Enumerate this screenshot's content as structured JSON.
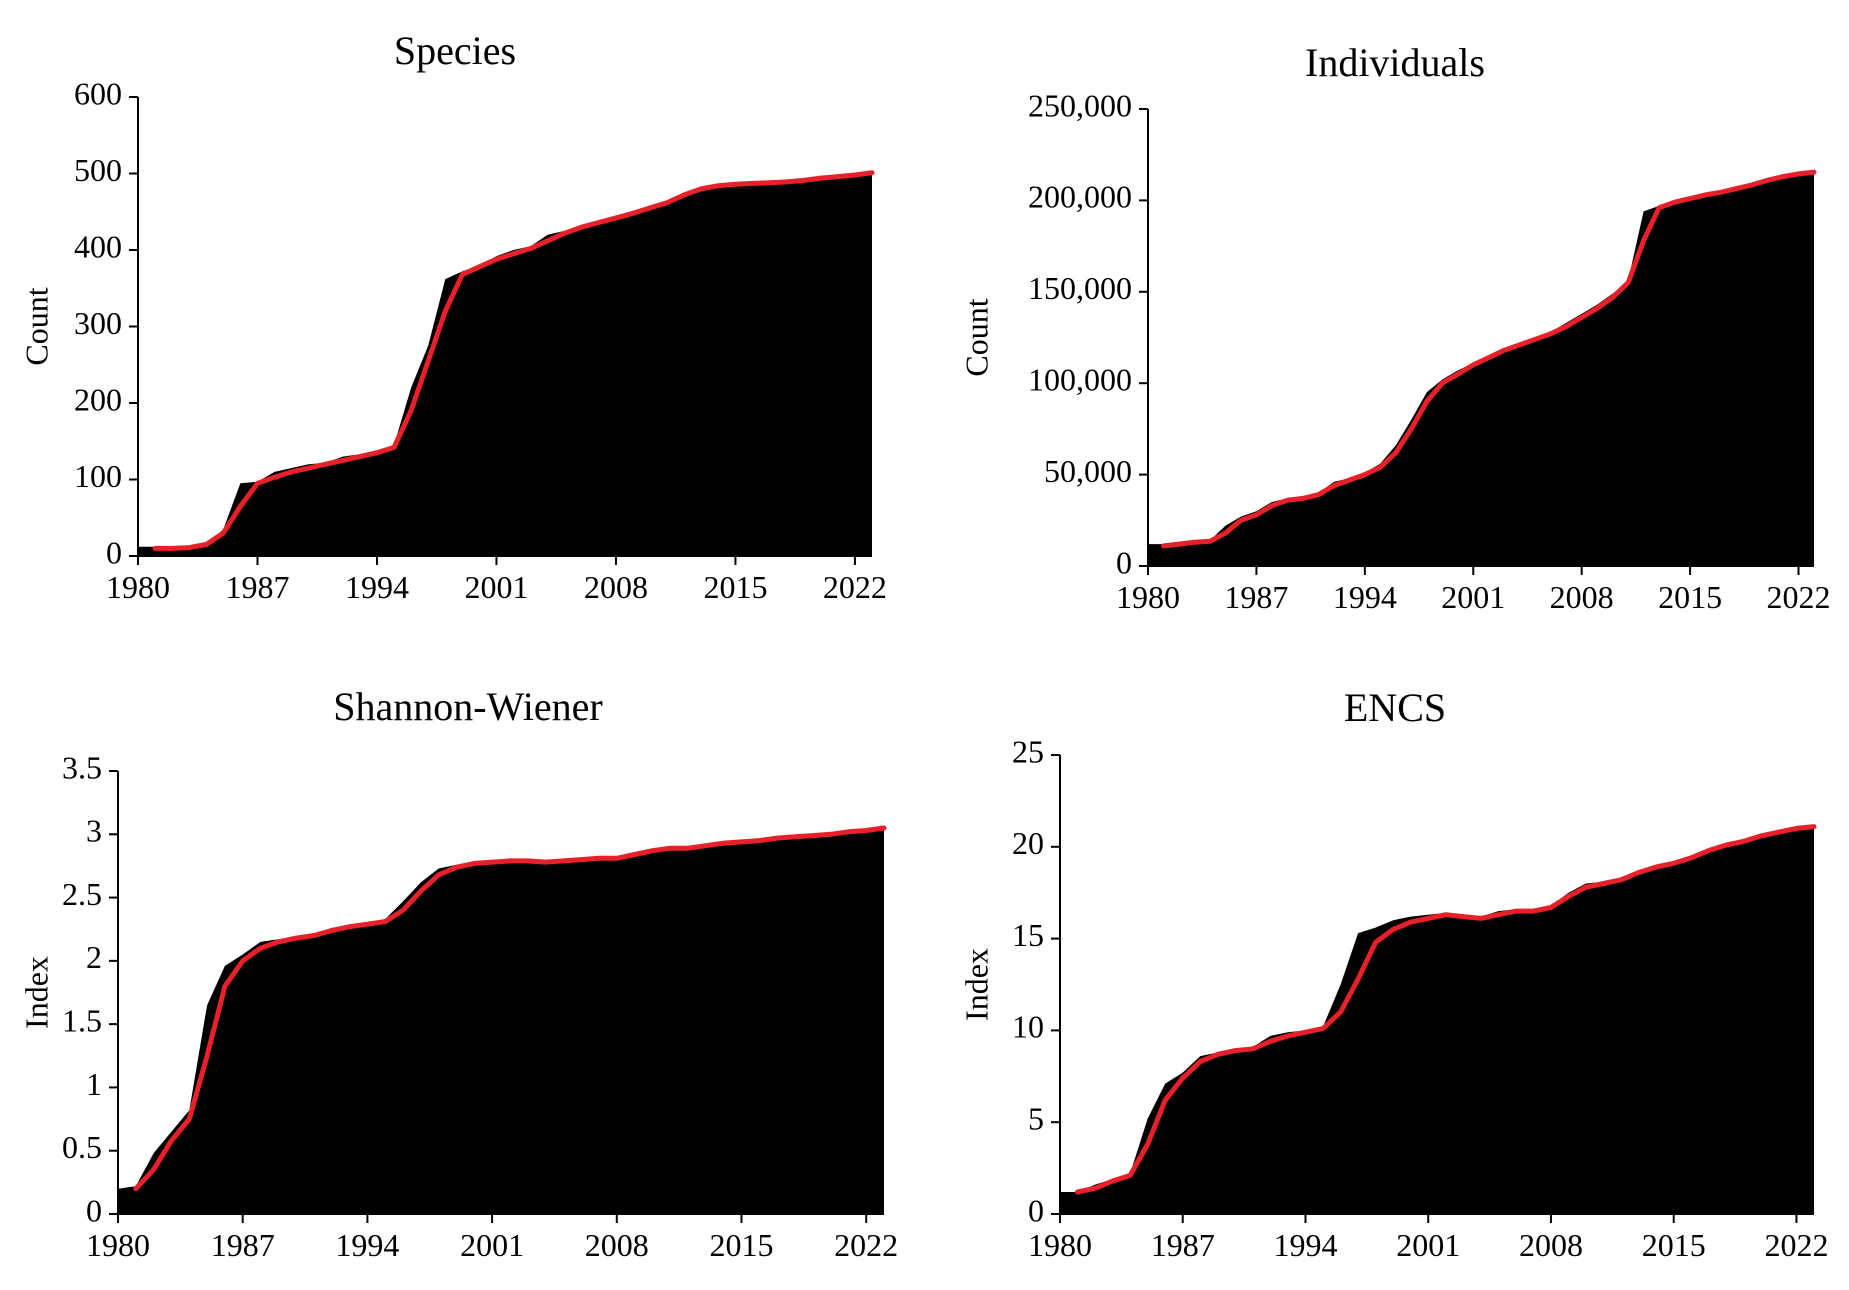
{
  "chart_data": [
    {
      "type": "area",
      "title": "Species",
      "xlabel": "",
      "ylabel": "Count",
      "xlim": [
        1980,
        2023
      ],
      "ylim": [
        0,
        600
      ],
      "x_ticks": [
        1980,
        1987,
        1994,
        2001,
        2008,
        2015,
        2022
      ],
      "x_tick_labels": [
        "1980",
        "1987",
        "1994",
        "2001",
        "2008",
        "2015",
        "2022"
      ],
      "y_ticks": [
        0,
        100,
        200,
        300,
        400,
        500,
        600
      ],
      "y_tick_labels": [
        "0",
        "100",
        "200",
        "300",
        "400",
        "500",
        "600"
      ],
      "grid": false,
      "legend": "none",
      "area_color": "#000000",
      "line_color": "#e8202a",
      "x": [
        1980,
        1981,
        1982,
        1983,
        1984,
        1985,
        1986,
        1987,
        1988,
        1989,
        1990,
        1991,
        1992,
        1993,
        1994,
        1995,
        1996,
        1997,
        1998,
        1999,
        2000,
        2001,
        2002,
        2003,
        2004,
        2005,
        2006,
        2007,
        2008,
        2009,
        2010,
        2011,
        2012,
        2013,
        2014,
        2015,
        2016,
        2017,
        2018,
        2019,
        2020,
        2021,
        2022,
        2023
      ],
      "series": [
        {
          "name": "",
          "values": [
            12,
            12,
            12,
            12,
            15,
            35,
            95,
            97,
            110,
            115,
            120,
            122,
            130,
            133,
            138,
            145,
            220,
            275,
            362,
            372,
            380,
            392,
            400,
            405,
            420,
            425,
            432,
            436,
            445,
            450,
            458,
            462,
            475,
            482,
            485,
            487,
            488,
            490,
            490,
            492,
            495,
            497,
            498,
            500
          ]
        },
        {
          "name": "",
          "values": [
            null,
            10,
            10,
            11,
            15,
            30,
            65,
            95,
            103,
            110,
            115,
            120,
            125,
            130,
            135,
            142,
            190,
            255,
            320,
            368,
            378,
            388,
            395,
            402,
            412,
            422,
            430,
            436,
            442,
            448,
            455,
            462,
            472,
            480,
            484,
            486,
            487,
            488,
            489,
            491,
            494,
            496,
            498,
            501
          ]
        }
      ]
    },
    {
      "type": "area",
      "title": "Individuals",
      "xlabel": "",
      "ylabel": "Count",
      "xlim": [
        1980,
        2023
      ],
      "ylim": [
        0,
        250000
      ],
      "x_ticks": [
        1980,
        1987,
        1994,
        2001,
        2008,
        2015,
        2022
      ],
      "x_tick_labels": [
        "1980",
        "1987",
        "1994",
        "2001",
        "2008",
        "2015",
        "2022"
      ],
      "y_ticks": [
        0,
        50000,
        100000,
        150000,
        200000,
        250000
      ],
      "y_tick_labels": [
        "0",
        "50,000",
        "100,000",
        "150,000",
        "200,000",
        "250,000"
      ],
      "grid": false,
      "legend": "none",
      "area_color": "#000000",
      "line_color": "#e8202a",
      "x": [
        1980,
        1981,
        1982,
        1983,
        1984,
        1985,
        1986,
        1987,
        1988,
        1989,
        1990,
        1991,
        1992,
        1993,
        1994,
        1995,
        1996,
        1997,
        1998,
        1999,
        2000,
        2001,
        2002,
        2003,
        2004,
        2005,
        2006,
        2007,
        2008,
        2009,
        2010,
        2011,
        2012,
        2013,
        2014,
        2015,
        2016,
        2017,
        2018,
        2019,
        2020,
        2021,
        2022,
        2023
      ],
      "series": [
        {
          "name": "",
          "values": [
            12000,
            12000,
            12000,
            13000,
            14000,
            22000,
            27000,
            30000,
            35000,
            37000,
            38000,
            40000,
            46000,
            48000,
            51000,
            56000,
            66000,
            80000,
            95000,
            102000,
            107000,
            111000,
            115000,
            119000,
            122000,
            125000,
            128000,
            133000,
            138000,
            143000,
            149000,
            156000,
            194000,
            197000,
            200000,
            202000,
            203000,
            205000,
            207000,
            209000,
            211000,
            213000,
            214000,
            215000
          ]
        },
        {
          "name": "",
          "values": [
            null,
            11000,
            12000,
            13000,
            13500,
            18000,
            25000,
            28000,
            33000,
            36000,
            37000,
            39000,
            44000,
            47000,
            50000,
            54000,
            62000,
            75000,
            90000,
            100000,
            105000,
            110000,
            114000,
            118000,
            121000,
            124000,
            127000,
            131000,
            136000,
            141000,
            147000,
            155000,
            178000,
            196000,
            199000,
            201000,
            203000,
            204500,
            206500,
            208500,
            211000,
            213000,
            214500,
            215500
          ]
        }
      ]
    },
    {
      "type": "area",
      "title": "Shannon-Wiener",
      "xlabel": "",
      "ylabel": "Index",
      "xlim": [
        1980,
        2023
      ],
      "ylim": [
        0,
        3.5
      ],
      "x_ticks": [
        1980,
        1987,
        1994,
        2001,
        2008,
        2015,
        2022
      ],
      "x_tick_labels": [
        "1980",
        "1987",
        "1994",
        "2001",
        "2008",
        "2015",
        "2022"
      ],
      "y_ticks": [
        0,
        0.5,
        1,
        1.5,
        2,
        2.5,
        3,
        3.5
      ],
      "y_tick_labels": [
        "0",
        "0.5",
        "1",
        "1.5",
        "2",
        "2.5",
        "3",
        "3.5"
      ],
      "grid": false,
      "legend": "none",
      "area_color": "#000000",
      "line_color": "#e8202a",
      "x": [
        1980,
        1981,
        1982,
        1983,
        1984,
        1985,
        1986,
        1987,
        1988,
        1989,
        1990,
        1991,
        1992,
        1993,
        1994,
        1995,
        1996,
        1997,
        1998,
        1999,
        2000,
        2001,
        2002,
        2003,
        2004,
        2005,
        2006,
        2007,
        2008,
        2009,
        2010,
        2011,
        2012,
        2013,
        2014,
        2015,
        2016,
        2017,
        2018,
        2019,
        2020,
        2021,
        2022,
        2023
      ],
      "series": [
        {
          "name": "",
          "values": [
            0.2,
            0.22,
            0.48,
            0.65,
            0.82,
            1.65,
            1.96,
            2.05,
            2.15,
            2.17,
            2.19,
            2.21,
            2.26,
            2.28,
            2.3,
            2.33,
            2.47,
            2.62,
            2.73,
            2.76,
            2.78,
            2.79,
            2.8,
            2.8,
            2.79,
            2.8,
            2.81,
            2.82,
            2.82,
            2.85,
            2.88,
            2.9,
            2.9,
            2.92,
            2.94,
            2.95,
            2.96,
            2.98,
            2.99,
            3.0,
            3.01,
            3.02,
            3.04,
            3.05
          ]
        },
        {
          "name": "",
          "values": [
            null,
            0.2,
            0.35,
            0.58,
            0.75,
            1.25,
            1.8,
            2.0,
            2.1,
            2.15,
            2.18,
            2.2,
            2.24,
            2.27,
            2.29,
            2.31,
            2.4,
            2.55,
            2.68,
            2.74,
            2.77,
            2.78,
            2.79,
            2.79,
            2.78,
            2.79,
            2.8,
            2.81,
            2.81,
            2.84,
            2.87,
            2.89,
            2.89,
            2.91,
            2.93,
            2.94,
            2.95,
            2.97,
            2.98,
            2.99,
            3.0,
            3.02,
            3.03,
            3.05
          ]
        }
      ]
    },
    {
      "type": "area",
      "title": "ENCS",
      "xlabel": "",
      "ylabel": "Index",
      "xlim": [
        1980,
        2023
      ],
      "ylim": [
        0,
        25
      ],
      "x_ticks": [
        1980,
        1987,
        1994,
        2001,
        2008,
        2015,
        2022
      ],
      "x_tick_labels": [
        "1980",
        "1987",
        "1994",
        "2001",
        "2008",
        "2015",
        "2022"
      ],
      "y_ticks": [
        0,
        5,
        10,
        15,
        20,
        25
      ],
      "y_tick_labels": [
        "0",
        "5",
        "10",
        "15",
        "20",
        "25"
      ],
      "grid": false,
      "legend": "none",
      "area_color": "#000000",
      "line_color": "#e8202a",
      "x": [
        1980,
        1981,
        1982,
        1983,
        1984,
        1985,
        1986,
        1987,
        1988,
        1989,
        1990,
        1991,
        1992,
        1993,
        1994,
        1995,
        1996,
        1997,
        1998,
        1999,
        2000,
        2001,
        2002,
        2003,
        2004,
        2005,
        2006,
        2007,
        2008,
        2009,
        2010,
        2011,
        2012,
        2013,
        2014,
        2015,
        2016,
        2017,
        2018,
        2019,
        2020,
        2021,
        2022,
        2023
      ],
      "series": [
        {
          "name": "",
          "values": [
            1.2,
            1.2,
            1.6,
            1.9,
            2.2,
            5.2,
            7.1,
            7.7,
            8.6,
            8.8,
            9.0,
            9.1,
            9.7,
            9.9,
            10.0,
            10.2,
            12.5,
            15.3,
            15.6,
            16.0,
            16.2,
            16.3,
            16.4,
            16.3,
            16.2,
            16.5,
            16.6,
            16.6,
            16.8,
            17.5,
            18.0,
            18.1,
            18.3,
            18.7,
            19.0,
            19.2,
            19.5,
            19.9,
            20.2,
            20.4,
            20.7,
            20.9,
            21.0,
            21.1
          ]
        },
        {
          "name": "",
          "values": [
            null,
            1.2,
            1.4,
            1.8,
            2.1,
            3.8,
            6.2,
            7.4,
            8.3,
            8.7,
            8.9,
            9.0,
            9.4,
            9.7,
            9.9,
            10.1,
            11.0,
            12.8,
            14.8,
            15.5,
            15.9,
            16.1,
            16.3,
            16.2,
            16.1,
            16.3,
            16.5,
            16.5,
            16.7,
            17.3,
            17.8,
            18.0,
            18.2,
            18.6,
            18.9,
            19.1,
            19.4,
            19.8,
            20.1,
            20.3,
            20.6,
            20.8,
            21.0,
            21.1
          ]
        }
      ]
    }
  ]
}
